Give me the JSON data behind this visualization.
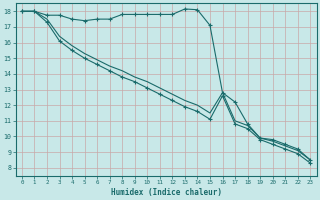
{
  "bg_color": "#c8e8e8",
  "line_color": "#1a6b6b",
  "xlabel": "Humidex (Indice chaleur)",
  "xlim": [
    -0.5,
    23.5
  ],
  "ylim": [
    7.5,
    18.5
  ],
  "yticks": [
    8,
    9,
    10,
    11,
    12,
    13,
    14,
    15,
    16,
    17,
    18
  ],
  "xticks": [
    0,
    1,
    2,
    3,
    4,
    5,
    6,
    7,
    8,
    9,
    10,
    11,
    12,
    13,
    14,
    15,
    16,
    17,
    18,
    19,
    20,
    21,
    22,
    23
  ],
  "line1_x": [
    0,
    1,
    2,
    3,
    4,
    5,
    6,
    7,
    8,
    9,
    10,
    11,
    12,
    13,
    14,
    15,
    16,
    17,
    18,
    19,
    20,
    21,
    22,
    23
  ],
  "line1_y": [
    18.0,
    18.0,
    17.75,
    17.75,
    17.5,
    17.4,
    17.5,
    17.5,
    17.8,
    17.8,
    17.8,
    17.8,
    17.8,
    18.15,
    18.1,
    17.1,
    12.8,
    12.2,
    10.8,
    9.9,
    9.8,
    9.5,
    9.2,
    8.5
  ],
  "line2_x": [
    0,
    1,
    2,
    3,
    4,
    5,
    6,
    7,
    8,
    9,
    10,
    11,
    12,
    13,
    14,
    15,
    16,
    17,
    18,
    19,
    20,
    21,
    22,
    23
  ],
  "line2_y": [
    18.0,
    18.0,
    17.3,
    16.1,
    15.5,
    15.0,
    14.6,
    14.2,
    13.8,
    13.5,
    13.1,
    12.7,
    12.3,
    11.9,
    11.6,
    11.1,
    12.6,
    10.8,
    10.5,
    9.8,
    9.5,
    9.2,
    8.9,
    8.3
  ],
  "line3_x": [
    0,
    1,
    2,
    3,
    4,
    5,
    6,
    7,
    8,
    9,
    10,
    11,
    12,
    13,
    14,
    15,
    16,
    17,
    18,
    19,
    20,
    21,
    22,
    23
  ],
  "line3_y": [
    18.0,
    18.0,
    17.5,
    16.4,
    15.8,
    15.3,
    14.9,
    14.5,
    14.2,
    13.8,
    13.5,
    13.1,
    12.7,
    12.3,
    12.0,
    11.5,
    12.8,
    11.0,
    10.7,
    9.9,
    9.7,
    9.4,
    9.1,
    8.5
  ]
}
